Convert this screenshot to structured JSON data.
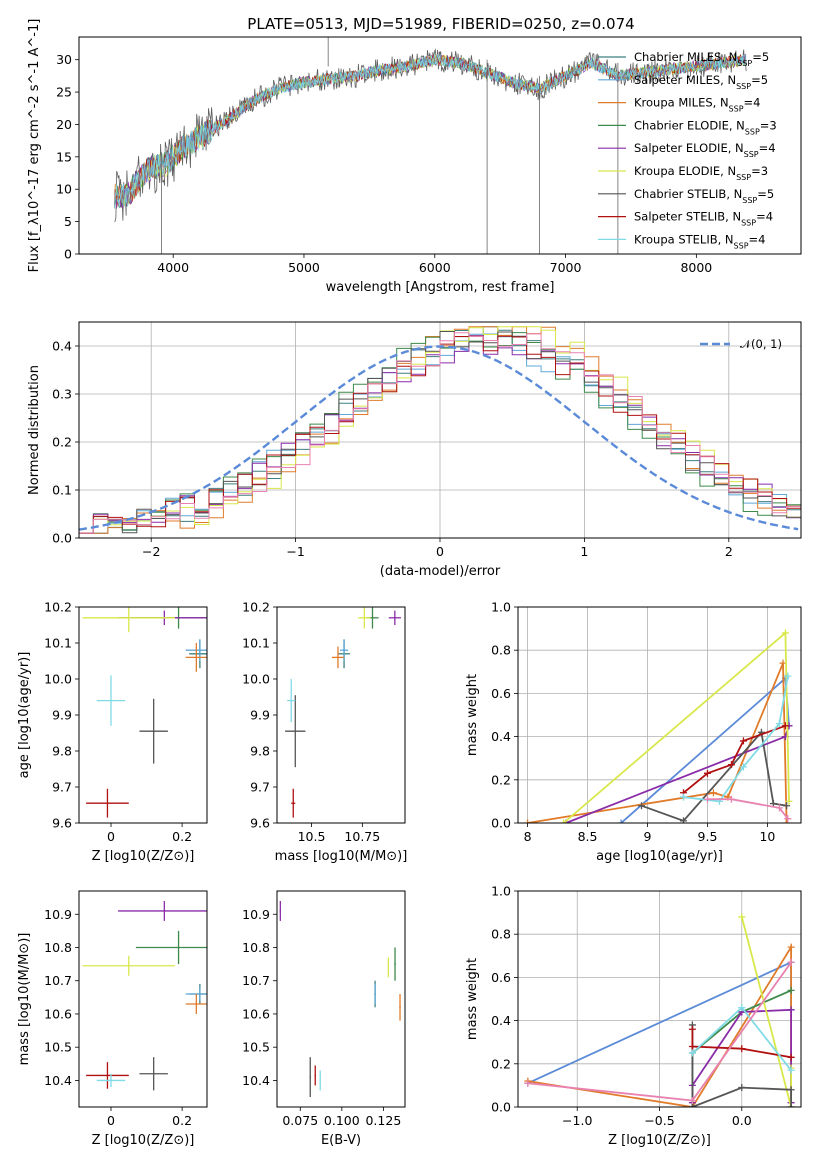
{
  "figure": {
    "title": "PLATE=0513, MJD=51989, FIBERID=0250, z=0.074"
  },
  "models": [
    {
      "name": "Chabrier MILES",
      "nssp": 5,
      "color": "#3f7f7f"
    },
    {
      "name": "Salpeter MILES",
      "nssp": 5,
      "color": "#5fa8d8"
    },
    {
      "name": "Kroupa MILES",
      "nssp": 4,
      "color": "#e07b2a"
    },
    {
      "name": "Chabrier ELODIE",
      "nssp": 3,
      "color": "#3d8a4a"
    },
    {
      "name": "Salpeter ELODIE",
      "nssp": 4,
      "color": "#8a2ca8"
    },
    {
      "name": "Kroupa ELODIE",
      "nssp": 3,
      "color": "#d8e84a"
    },
    {
      "name": "Chabrier STELIB",
      "nssp": 5,
      "color": "#555555"
    },
    {
      "name": "Salpeter STELIB",
      "nssp": 4,
      "color": "#b01010"
    },
    {
      "name": "Kroupa STELIB",
      "nssp": 4,
      "color": "#80dbe6"
    }
  ],
  "chart_data": [
    {
      "id": "spectrum",
      "type": "line",
      "xlabel": "wavelength [Angstrom, rest frame]",
      "ylabel": "Flux [f_λ10^-17 erg cm^-2 s^-1 A^-1]",
      "xlim": [
        3280,
        8800
      ],
      "ylim": [
        0,
        33.5
      ],
      "xticks": [
        4000,
        5000,
        6000,
        7000,
        8000
      ],
      "yticks": [
        0,
        5,
        10,
        15,
        20,
        25,
        30
      ],
      "continuum": [
        [
          3550,
          9
        ],
        [
          3650,
          9
        ],
        [
          3800,
          13
        ],
        [
          3950,
          14
        ],
        [
          4050,
          16
        ],
        [
          4200,
          18
        ],
        [
          4400,
          20.5
        ],
        [
          4600,
          23.5
        ],
        [
          4800,
          25.5
        ],
        [
          5000,
          26.5
        ],
        [
          5200,
          27
        ],
        [
          5400,
          27.5
        ],
        [
          5600,
          28.5
        ],
        [
          5800,
          29
        ],
        [
          6000,
          30
        ],
        [
          6200,
          29.5
        ],
        [
          6400,
          28
        ],
        [
          6600,
          26.5
        ],
        [
          6800,
          25.5
        ],
        [
          7000,
          27.5
        ],
        [
          7200,
          29.5
        ],
        [
          7400,
          27.5
        ],
        [
          7600,
          28
        ],
        [
          7800,
          28.5
        ],
        [
          8000,
          29
        ],
        [
          8200,
          29.5
        ],
        [
          8380,
          30
        ]
      ],
      "spikes": [
        [
          3910,
          0
        ],
        [
          5185,
          33.5
        ],
        [
          6400,
          0
        ],
        [
          6800,
          0
        ],
        [
          7400,
          0
        ]
      ],
      "grid": false,
      "legend": "upper-right"
    },
    {
      "id": "residuals",
      "type": "histogram",
      "xlabel": "(data-model)/error",
      "ylabel": "Normed distribution",
      "xlim": [
        -2.5,
        2.5
      ],
      "ylim": [
        0,
        0.45
      ],
      "xticks": [
        -2,
        -1,
        0,
        1,
        2
      ],
      "yticks": [
        0.0,
        0.1,
        0.2,
        0.3,
        0.4
      ],
      "bin_width": 0.1,
      "reference_curve": {
        "name": "𝒩(0, 1)",
        "mean": 0,
        "sigma": 1,
        "color": "#5b8bd8"
      },
      "grid": true,
      "legend": "upper-right"
    },
    {
      "id": "age-vs-z",
      "type": "scatter",
      "xlabel": "Z [log10(Z/Z⊙)]",
      "ylabel": "age  [log10(age/yr)]",
      "xlim": [
        -0.09,
        0.27
      ],
      "ylim": [
        9.6,
        10.2
      ],
      "xticks": [
        0.0,
        0.2
      ],
      "yticks": [
        9.6,
        9.7,
        9.8,
        9.9,
        10.0,
        10.1,
        10.2
      ],
      "points": [
        {
          "model": 0,
          "x": 0.25,
          "y": 10.07,
          "xerr": 0.03,
          "yerr": 0.04
        },
        {
          "model": 1,
          "x": 0.25,
          "y": 10.08,
          "xerr": 0.04,
          "yerr": 0.03
        },
        {
          "model": 2,
          "x": 0.24,
          "y": 10.06,
          "xerr": 0.03,
          "yerr": 0.04
        },
        {
          "model": 3,
          "x": 0.19,
          "y": 10.17,
          "xerr": 0.12,
          "yerr": 0.03
        },
        {
          "model": 4,
          "x": 0.15,
          "y": 10.17,
          "xerr": 0.13,
          "yerr": 0.02
        },
        {
          "model": 5,
          "x": 0.05,
          "y": 10.17,
          "xerr": 0.13,
          "yerr": 0.04
        },
        {
          "model": 6,
          "x": 0.12,
          "y": 9.855,
          "xerr": 0.04,
          "yerr": 0.09
        },
        {
          "model": 7,
          "x": -0.01,
          "y": 9.655,
          "xerr": 0.06,
          "yerr": 0.04
        },
        {
          "model": 8,
          "x": 0.0,
          "y": 9.94,
          "xerr": 0.04,
          "yerr": 0.07
        }
      ]
    },
    {
      "id": "age-vs-mass",
      "type": "scatter",
      "xlabel": "mass [log10(M/M⊙)]",
      "ylabel": "",
      "xlim": [
        10.33,
        10.96
      ],
      "ylim": [
        9.6,
        10.2
      ],
      "xticks": [
        10.5,
        10.75
      ],
      "yticks": [
        9.6,
        9.7,
        9.8,
        9.9,
        10.0,
        10.1,
        10.2
      ],
      "points": [
        {
          "model": 0,
          "x": 10.66,
          "y": 10.07,
          "xerr": 0.03,
          "yerr": 0.04
        },
        {
          "model": 1,
          "x": 10.66,
          "y": 10.08,
          "xerr": 0.02,
          "yerr": 0.03
        },
        {
          "model": 2,
          "x": 10.63,
          "y": 10.06,
          "xerr": 0.03,
          "yerr": 0.03
        },
        {
          "model": 3,
          "x": 10.8,
          "y": 10.17,
          "xerr": 0.03,
          "yerr": 0.03
        },
        {
          "model": 4,
          "x": 10.91,
          "y": 10.17,
          "xerr": 0.03,
          "yerr": 0.02
        },
        {
          "model": 5,
          "x": 10.76,
          "y": 10.17,
          "xerr": 0.03,
          "yerr": 0.03
        },
        {
          "model": 6,
          "x": 10.42,
          "y": 9.855,
          "xerr": 0.05,
          "yerr": 0.1
        },
        {
          "model": 7,
          "x": 10.41,
          "y": 9.655,
          "xerr": 0.01,
          "yerr": 0.04
        },
        {
          "model": 8,
          "x": 10.4,
          "y": 9.94,
          "xerr": 0.02,
          "yerr": 0.06
        }
      ]
    },
    {
      "id": "weight-vs-age",
      "type": "line",
      "xlabel": "age  [log10(age/yr)]",
      "ylabel": "mass weight",
      "xlim": [
        7.92,
        10.28
      ],
      "ylim": [
        0,
        1.0
      ],
      "xticks": [
        8.0,
        8.5,
        9.0,
        9.5,
        10.0
      ],
      "yticks": [
        0.0,
        0.2,
        0.4,
        0.6,
        0.8,
        1.0
      ],
      "grid": true,
      "series": [
        {
          "model": 0,
          "x": [
            8.78,
            10.15,
            10.18
          ],
          "y": [
            0.0,
            0.67,
            0.45
          ]
        },
        {
          "model": 2,
          "x": [
            8.0,
            9.55,
            9.67,
            10.13,
            10.16
          ],
          "y": [
            0.0,
            0.14,
            0.12,
            0.74,
            0.0
          ]
        },
        {
          "model": 4,
          "x": [
            8.32,
            10.15,
            10.18
          ],
          "y": [
            0.0,
            0.4,
            0.45
          ]
        },
        {
          "model": 5,
          "x": [
            8.3,
            10.15,
            10.18
          ],
          "y": [
            0.0,
            0.88,
            0.1
          ]
        },
        {
          "model": 6,
          "x": [
            8.95,
            9.3,
            9.95,
            10.05,
            10.16
          ],
          "y": [
            0.08,
            0.01,
            0.42,
            0.09,
            0.08
          ]
        },
        {
          "model": 7,
          "x": [
            9.3,
            9.5,
            9.7,
            9.8,
            10.15
          ],
          "y": [
            0.14,
            0.23,
            0.27,
            0.38,
            0.45
          ]
        },
        {
          "model": 8,
          "x": [
            9.3,
            9.6,
            9.8,
            10.1,
            10.17
          ],
          "y": [
            0.12,
            0.1,
            0.26,
            0.46,
            0.68
          ]
        },
        {
          "model": 1,
          "x": [
            9.5,
            9.7,
            10.1,
            10.17
          ],
          "y": [
            0.11,
            0.11,
            0.07,
            0.02
          ]
        }
      ]
    },
    {
      "id": "mass-vs-z",
      "type": "scatter",
      "xlabel": "Z [log10(Z/Z⊙)]",
      "ylabel": "mass [log10(M/M⊙)]",
      "xlim": [
        -0.09,
        0.27
      ],
      "ylim": [
        10.32,
        10.97
      ],
      "xticks": [
        0.0,
        0.2
      ],
      "yticks": [
        10.4,
        10.5,
        10.6,
        10.7,
        10.8,
        10.9
      ],
      "points": [
        {
          "model": 0,
          "x": 0.25,
          "y": 10.66,
          "xerr": 0.03,
          "yerr": 0.03
        },
        {
          "model": 1,
          "x": 0.25,
          "y": 10.66,
          "xerr": 0.04,
          "yerr": 0.02
        },
        {
          "model": 2,
          "x": 0.24,
          "y": 10.63,
          "xerr": 0.03,
          "yerr": 0.03
        },
        {
          "model": 3,
          "x": 0.19,
          "y": 10.8,
          "xerr": 0.12,
          "yerr": 0.05
        },
        {
          "model": 4,
          "x": 0.15,
          "y": 10.91,
          "xerr": 0.13,
          "yerr": 0.03
        },
        {
          "model": 5,
          "x": 0.05,
          "y": 10.745,
          "xerr": 0.13,
          "yerr": 0.03
        },
        {
          "model": 6,
          "x": 0.12,
          "y": 10.42,
          "xerr": 0.04,
          "yerr": 0.05
        },
        {
          "model": 7,
          "x": -0.01,
          "y": 10.415,
          "xerr": 0.06,
          "yerr": 0.04
        },
        {
          "model": 8,
          "x": 0.0,
          "y": 10.4,
          "xerr": 0.04,
          "yerr": 0.02
        }
      ]
    },
    {
      "id": "mass-vs-ebv",
      "type": "scatter",
      "xlabel": "E(B-V)",
      "ylabel": "",
      "xlim": [
        0.061,
        0.138
      ],
      "ylim": [
        10.32,
        10.97
      ],
      "xticks": [
        0.075,
        0.1,
        0.125
      ],
      "xticklabels": [
        "0.075",
        "0.100",
        "0.125"
      ],
      "yticks": [
        10.4,
        10.5,
        10.6,
        10.7,
        10.8,
        10.9
      ],
      "points": [
        {
          "model": 0,
          "x": 0.12,
          "y": 10.66,
          "yerr": 0.04
        },
        {
          "model": 1,
          "x": 0.12,
          "y": 10.66,
          "yerr": 0.03
        },
        {
          "model": 2,
          "x": 0.135,
          "y": 10.62,
          "yerr": 0.04
        },
        {
          "model": 3,
          "x": 0.132,
          "y": 10.75,
          "yerr": 0.05
        },
        {
          "model": 4,
          "x": 0.063,
          "y": 10.91,
          "yerr": 0.03
        },
        {
          "model": 5,
          "x": 0.128,
          "y": 10.74,
          "yerr": 0.03
        },
        {
          "model": 6,
          "x": 0.081,
          "y": 10.41,
          "yerr": 0.06
        },
        {
          "model": 7,
          "x": 0.084,
          "y": 10.415,
          "yerr": 0.03
        },
        {
          "model": 8,
          "x": 0.087,
          "y": 10.4,
          "yerr": 0.03
        }
      ]
    },
    {
      "id": "weight-vs-z",
      "type": "line",
      "xlabel": "Z [log10(Z/Z⊙)]",
      "ylabel": "mass weight",
      "xlim": [
        -1.36,
        0.36
      ],
      "ylim": [
        0,
        1.0
      ],
      "xticks": [
        -1.0,
        -0.5,
        0.0
      ],
      "xticklabels": [
        "−1.0",
        "−0.5",
        "0.0"
      ],
      "yticks": [
        0.0,
        0.2,
        0.4,
        0.6,
        0.8,
        1.0
      ],
      "grid": true,
      "series": [
        {
          "model": 0,
          "x": [
            -1.3,
            0.3,
            0.3
          ],
          "y": [
            0.11,
            0.67,
            0.45
          ]
        },
        {
          "model": 2,
          "x": [
            -1.3,
            -0.3,
            0.3,
            0.3
          ],
          "y": [
            0.12,
            0.0,
            0.74,
            0.0
          ]
        },
        {
          "model": 3,
          "x": [
            -0.3,
            -0.3,
            0.0,
            0.3
          ],
          "y": [
            0.0,
            0.25,
            0.44,
            0.54
          ]
        },
        {
          "model": 4,
          "x": [
            -0.3,
            -0.3,
            0.0,
            0.3,
            0.3
          ],
          "y": [
            0.02,
            0.1,
            0.44,
            0.45,
            0.02
          ]
        },
        {
          "model": 5,
          "x": [
            0.0,
            0.3,
            0.3
          ],
          "y": [
            0.88,
            0.0,
            0.18
          ]
        },
        {
          "model": 6,
          "x": [
            -0.3,
            -0.3,
            0.0,
            0.3,
            0.3
          ],
          "y": [
            0.38,
            0.0,
            0.09,
            0.08,
            0.0
          ]
        },
        {
          "model": 7,
          "x": [
            -0.3,
            -0.3,
            0.0,
            0.3
          ],
          "y": [
            0.36,
            0.28,
            0.27,
            0.23
          ]
        },
        {
          "model": 8,
          "x": [
            -0.3,
            0.0,
            0.3
          ],
          "y": [
            0.25,
            0.46,
            0.17
          ]
        },
        {
          "model": 1,
          "x": [
            -1.3,
            -0.3,
            0.3
          ],
          "y": [
            0.11,
            0.03,
            0.67
          ]
        }
      ]
    }
  ]
}
